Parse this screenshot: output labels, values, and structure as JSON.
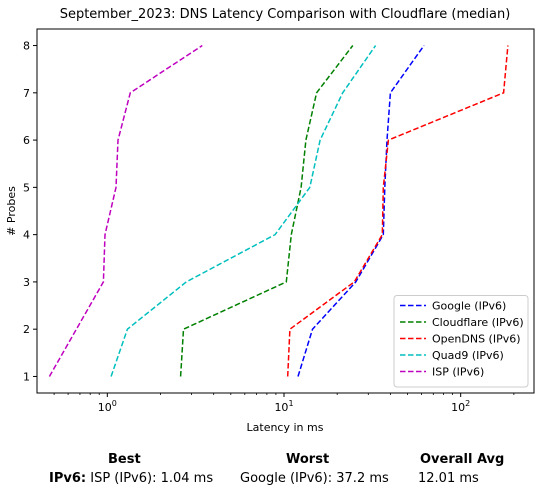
{
  "chart_data": {
    "type": "line",
    "title": "September_2023: DNS Latency Comparison with Cloudflare (median)",
    "xlabel": "Latency in ms",
    "ylabel": "# Probes",
    "xscale": "log",
    "xlim": [
      0.4,
      260
    ],
    "ylim": [
      0.65,
      8.35
    ],
    "xticks": [
      {
        "value": 1,
        "label": "10^0"
      },
      {
        "value": 10,
        "label": "10^1"
      },
      {
        "value": 100,
        "label": "10^2"
      }
    ],
    "yticks": [
      1,
      2,
      3,
      4,
      5,
      6,
      7,
      8
    ],
    "legend_position": "lower-right",
    "line_style": "dashed",
    "series": [
      {
        "name": "Google (IPv6)",
        "color": "#0000ff",
        "points": [
          [
            12.0,
            1
          ],
          [
            14.5,
            2
          ],
          [
            25.5,
            3
          ],
          [
            36.5,
            4
          ],
          [
            37.2,
            5
          ],
          [
            38.3,
            6
          ],
          [
            40.0,
            7
          ],
          [
            62.0,
            8
          ]
        ]
      },
      {
        "name": "Cloudflare (IPv6)",
        "color": "#008000",
        "points": [
          [
            2.6,
            1
          ],
          [
            2.7,
            2
          ],
          [
            10.3,
            3
          ],
          [
            11.0,
            4
          ],
          [
            12.5,
            5
          ],
          [
            13.3,
            6
          ],
          [
            15.3,
            7
          ],
          [
            24.5,
            8
          ]
        ]
      },
      {
        "name": "OpenDNS (IPv6)",
        "color": "#ff0000",
        "points": [
          [
            10.5,
            1
          ],
          [
            10.8,
            2
          ],
          [
            25.0,
            3
          ],
          [
            36.0,
            4
          ],
          [
            36.5,
            5
          ],
          [
            39.0,
            6
          ],
          [
            175,
            7
          ],
          [
            185,
            8
          ]
        ]
      },
      {
        "name": "Quad9 (IPv6)",
        "color": "#00bfbf",
        "points": [
          [
            1.05,
            1
          ],
          [
            1.3,
            2
          ],
          [
            2.8,
            3
          ],
          [
            8.9,
            4
          ],
          [
            14.0,
            5
          ],
          [
            16.0,
            6
          ],
          [
            21.5,
            7
          ],
          [
            33.0,
            8
          ]
        ]
      },
      {
        "name": "ISP (IPv6)",
        "color": "#bf00bf",
        "points": [
          [
            0.47,
            1
          ],
          [
            0.95,
            3
          ],
          [
            0.97,
            4
          ],
          [
            1.12,
            5
          ],
          [
            1.15,
            6
          ],
          [
            1.35,
            7
          ],
          [
            3.45,
            8
          ]
        ]
      }
    ]
  },
  "summary": {
    "best_header": "Best",
    "worst_header": "Worst",
    "avg_header": "Overall Avg",
    "row_label": "IPv6:",
    "best_value": "ISP (IPv6): 1.04 ms",
    "worst_value": "Google (IPv6): 37.2 ms",
    "avg_value": "12.01 ms"
  }
}
